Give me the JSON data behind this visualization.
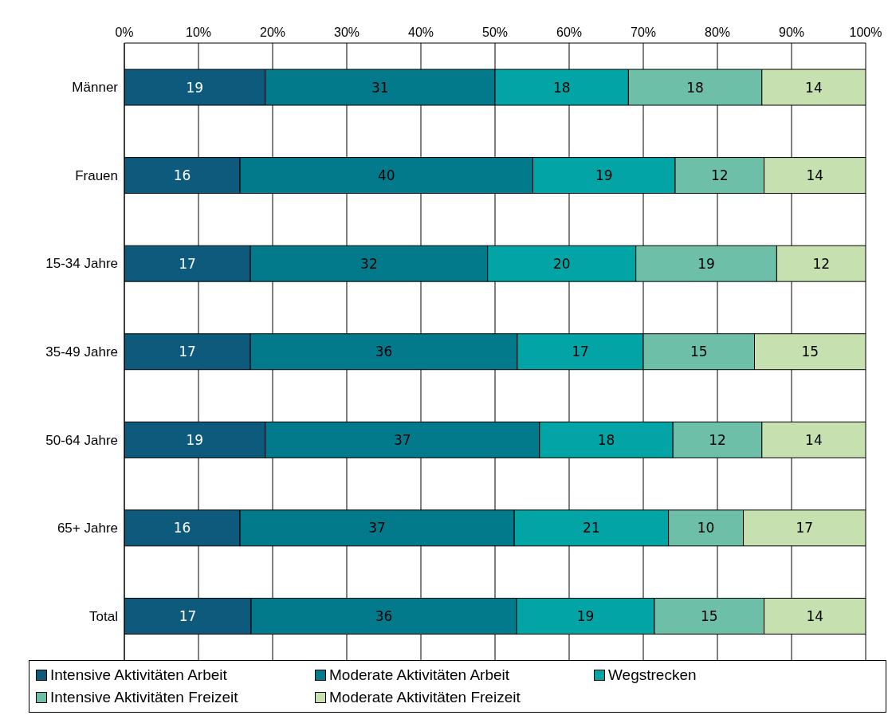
{
  "chart_data": {
    "type": "bar",
    "orientation": "horizontal",
    "stacked": true,
    "categories": [
      "Männer",
      "Frauen",
      "15-34 Jahre",
      "35-49 Jahre",
      "50-64 Jahre",
      "65+ Jahre",
      "Total"
    ],
    "series": [
      {
        "name": "Intensive Aktivitäten Arbeit",
        "color": "#0e5a7c",
        "values": [
          19,
          15.6,
          17,
          17,
          19,
          15.6,
          17.1
        ],
        "value_labels": [
          "19",
          "16",
          "17",
          "17",
          "19",
          "16",
          "17"
        ]
      },
      {
        "name": "Moderate Aktivitäten Arbeit",
        "color": "#027a8c",
        "values": [
          31,
          39.5,
          32,
          36,
          37,
          37,
          35.8
        ],
        "value_labels": [
          "31",
          "40",
          "32",
          "36",
          "37",
          "37",
          "36"
        ]
      },
      {
        "name": "Wegstrecken",
        "color": "#02a4a6",
        "values": [
          18,
          19.2,
          20,
          17,
          18,
          20.8,
          18.6
        ],
        "value_labels": [
          "18",
          "19",
          "20",
          "17",
          "18",
          "21",
          "19"
        ]
      },
      {
        "name": "Intensive Aktivitäten Freizeit",
        "color": "#6dbfa7",
        "values": [
          18,
          12,
          19,
          15,
          12,
          10.1,
          14.8
        ],
        "value_labels": [
          "18",
          "12",
          "19",
          "15",
          "12",
          "10",
          "15"
        ]
      },
      {
        "name": "Moderate Aktivitäten Freizeit",
        "color": "#c6e0b0",
        "values": [
          14,
          13.7,
          12,
          15,
          14,
          16.5,
          13.7
        ],
        "value_labels": [
          "14",
          "14",
          "12",
          "15",
          "14",
          "17",
          "14"
        ]
      }
    ],
    "xlim": [
      0,
      100
    ],
    "xticks": [
      {
        "value": 0,
        "label": "0%"
      },
      {
        "value": 10,
        "label": "10%"
      },
      {
        "value": 20,
        "label": "20%"
      },
      {
        "value": 30,
        "label": "30%"
      },
      {
        "value": 40,
        "label": "40%"
      },
      {
        "value": 50,
        "label": "50%"
      },
      {
        "value": 60,
        "label": "60%"
      },
      {
        "value": 70,
        "label": "70%"
      },
      {
        "value": 80,
        "label": "80%"
      },
      {
        "value": 90,
        "label": "90%"
      },
      {
        "value": 100,
        "label": "100%"
      }
    ],
    "grid": "x",
    "legend": "bottom"
  }
}
